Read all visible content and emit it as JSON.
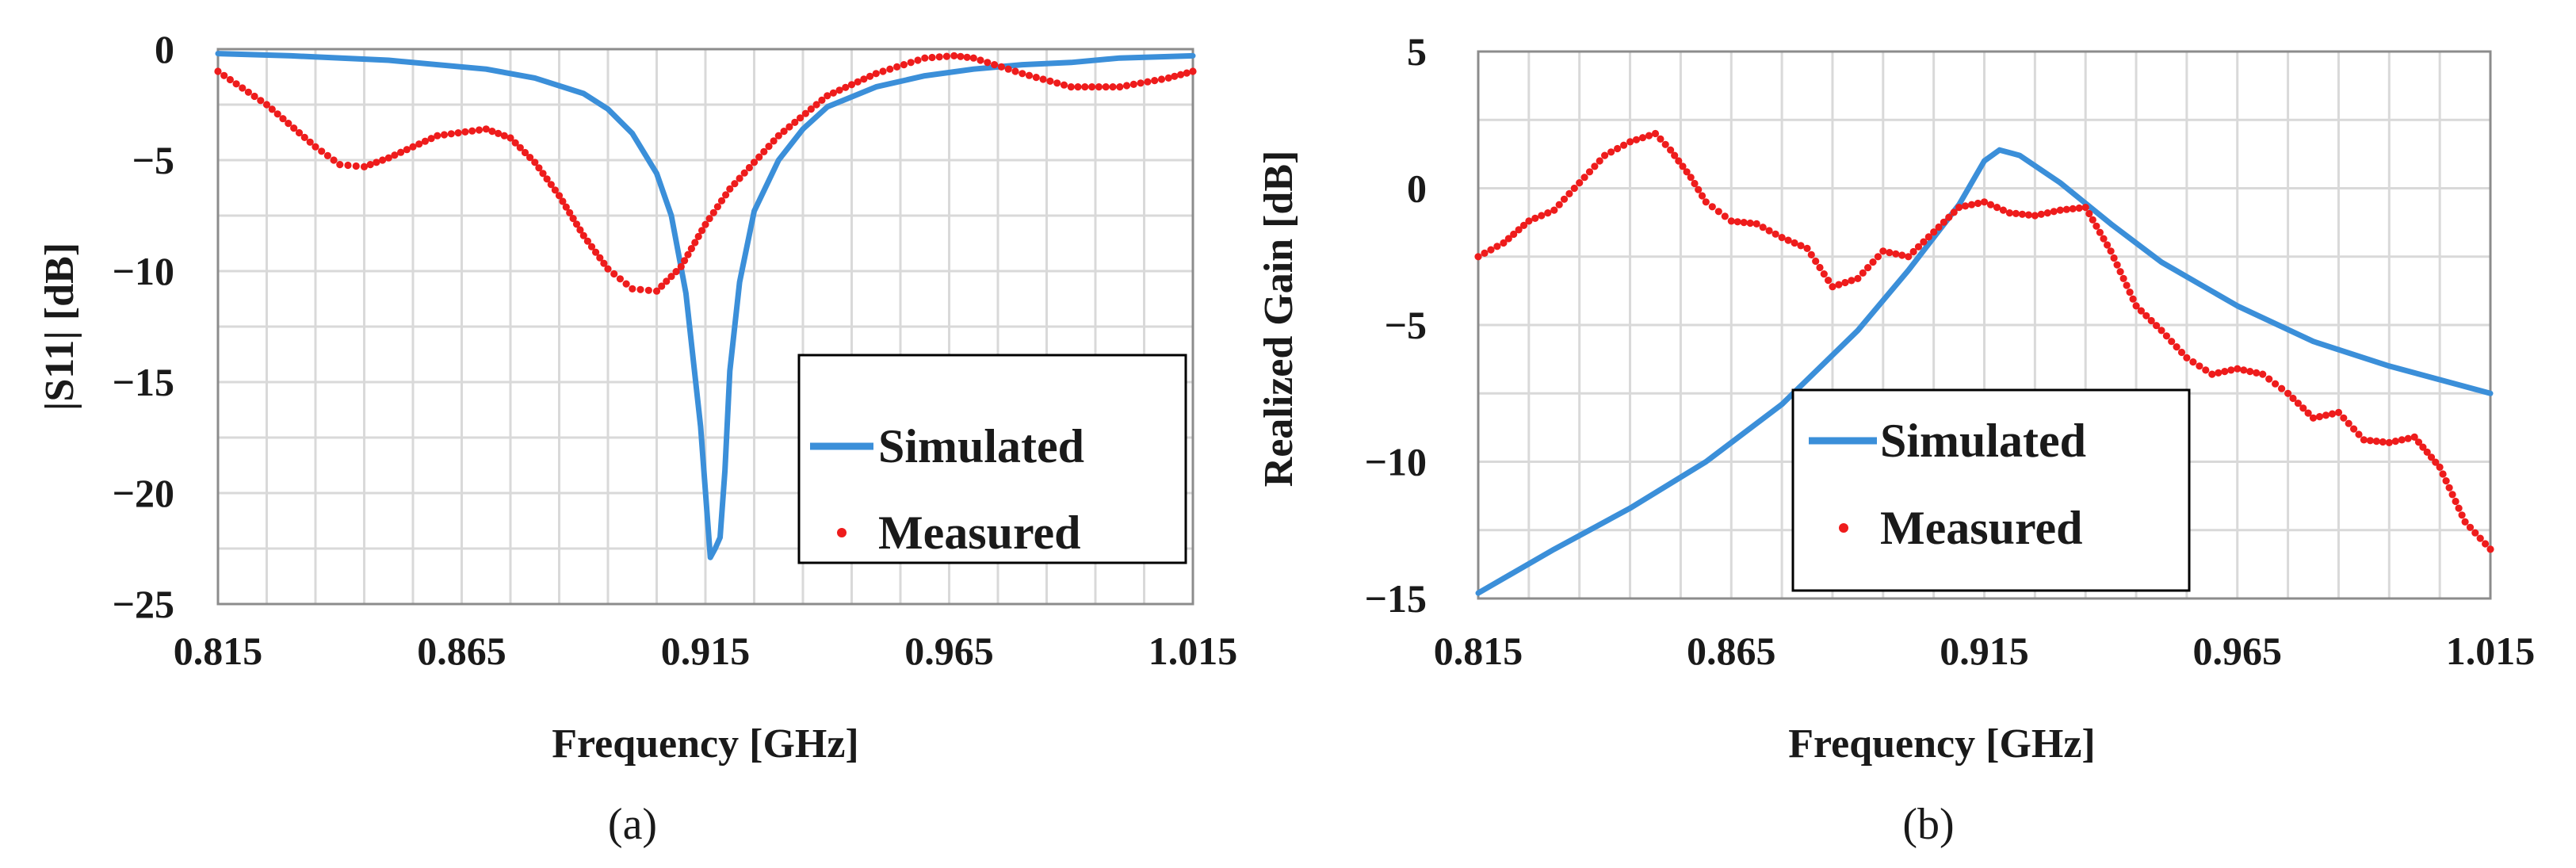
{
  "chart_data": [
    {
      "id": "a",
      "type": "line",
      "panel_label": "(a)",
      "xlabel": "Frequency [GHz]",
      "ylabel": "|S11| [dB]",
      "xlim": [
        0.815,
        1.015
      ],
      "ylim": [
        -25,
        0
      ],
      "xticks": [
        "0.815",
        "0.865",
        "0.915",
        "0.965",
        "1.015"
      ],
      "yticks": [
        "0",
        "−5",
        "−10",
        "−15",
        "−20",
        "−25"
      ],
      "grid": true,
      "legend_position": "bottom-right",
      "series": [
        {
          "name": "Simulated",
          "style": "solid",
          "color": "#3b8fd9",
          "x": [
            0.815,
            0.83,
            0.85,
            0.87,
            0.88,
            0.89,
            0.895,
            0.9,
            0.905,
            0.908,
            0.911,
            0.914,
            0.916,
            0.917,
            0.918,
            0.919,
            0.92,
            0.922,
            0.925,
            0.93,
            0.935,
            0.94,
            0.95,
            0.96,
            0.97,
            0.98,
            0.99,
            1.0,
            1.015
          ],
          "y": [
            -0.2,
            -0.3,
            -0.5,
            -0.9,
            -1.3,
            -2.0,
            -2.7,
            -3.8,
            -5.6,
            -7.5,
            -11.0,
            -17.0,
            -22.9,
            -22.5,
            -22.0,
            -19.0,
            -14.5,
            -10.5,
            -7.3,
            -5.0,
            -3.6,
            -2.6,
            -1.7,
            -1.2,
            -0.9,
            -0.7,
            -0.6,
            -0.4,
            -0.3
          ]
        },
        {
          "name": "Measured",
          "style": "dots",
          "color": "#ee1c1c",
          "x": [
            0.815,
            0.825,
            0.835,
            0.84,
            0.845,
            0.85,
            0.86,
            0.87,
            0.875,
            0.88,
            0.885,
            0.89,
            0.895,
            0.9,
            0.905,
            0.91,
            0.915,
            0.92,
            0.93,
            0.94,
            0.95,
            0.96,
            0.966,
            0.97,
            0.98,
            0.99,
            1.0,
            1.01,
            1.015
          ],
          "y": [
            -1.0,
            -2.5,
            -4.4,
            -5.2,
            -5.3,
            -4.9,
            -3.9,
            -3.6,
            -4.0,
            -5.1,
            -6.6,
            -8.4,
            -9.9,
            -10.8,
            -10.9,
            -9.8,
            -7.9,
            -6.3,
            -3.9,
            -2.1,
            -1.1,
            -0.4,
            -0.3,
            -0.4,
            -1.1,
            -1.7,
            -1.7,
            -1.3,
            -1.0
          ]
        }
      ]
    },
    {
      "id": "b",
      "type": "line",
      "panel_label": "(b)",
      "xlabel": "Frequency [GHz]",
      "ylabel": "Realized Gain [dB]",
      "xlim": [
        0.815,
        1.015
      ],
      "ylim": [
        -15,
        5
      ],
      "xticks": [
        "0.815",
        "0.865",
        "0.915",
        "0.965",
        "1.015"
      ],
      "yticks": [
        "5",
        "0",
        "−5",
        "−10",
        "−15"
      ],
      "grid": true,
      "legend_position": "middle",
      "series": [
        {
          "name": "Simulated",
          "style": "solid",
          "color": "#3b8fd9",
          "x": [
            0.815,
            0.83,
            0.845,
            0.86,
            0.875,
            0.89,
            0.9,
            0.91,
            0.915,
            0.918,
            0.922,
            0.93,
            0.94,
            0.95,
            0.965,
            0.98,
            0.995,
            1.015
          ],
          "y": [
            -14.8,
            -13.2,
            -11.7,
            -10.0,
            -7.9,
            -5.2,
            -3.0,
            -0.6,
            1.0,
            1.4,
            1.2,
            0.2,
            -1.3,
            -2.7,
            -4.3,
            -5.6,
            -6.5,
            -7.5
          ]
        },
        {
          "name": "Measured",
          "style": "dots",
          "color": "#ee1c1c",
          "x": [
            0.815,
            0.82,
            0.825,
            0.83,
            0.835,
            0.84,
            0.845,
            0.85,
            0.853,
            0.857,
            0.86,
            0.865,
            0.87,
            0.875,
            0.88,
            0.885,
            0.89,
            0.895,
            0.9,
            0.905,
            0.91,
            0.915,
            0.92,
            0.925,
            0.93,
            0.935,
            0.94,
            0.945,
            0.95,
            0.955,
            0.96,
            0.965,
            0.97,
            0.975,
            0.98,
            0.985,
            0.99,
            0.995,
            1.0,
            1.005,
            1.01,
            1.015
          ],
          "y": [
            -2.5,
            -2.0,
            -1.2,
            -0.8,
            0.2,
            1.2,
            1.7,
            2.0,
            1.4,
            0.4,
            -0.5,
            -1.2,
            -1.3,
            -1.8,
            -2.2,
            -3.6,
            -3.3,
            -2.3,
            -2.5,
            -1.6,
            -0.7,
            -0.5,
            -0.9,
            -1.0,
            -0.8,
            -0.7,
            -2.3,
            -4.3,
            -5.2,
            -6.2,
            -6.8,
            -6.6,
            -6.8,
            -7.5,
            -8.4,
            -8.2,
            -9.2,
            -9.3,
            -9.1,
            -10.2,
            -12.2,
            -13.2
          ]
        }
      ]
    }
  ]
}
